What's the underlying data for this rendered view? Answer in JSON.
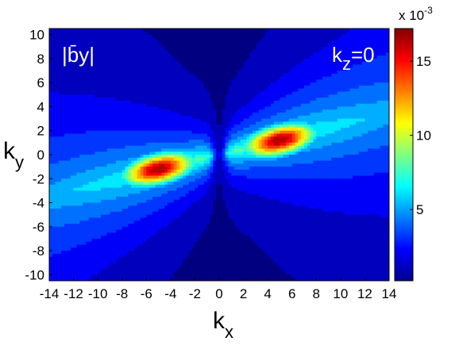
{
  "chart_data": {
    "type": "heatmap",
    "panel_label": "|b̄y|",
    "annotation": {
      "base": "k",
      "sub": "z",
      "rest": "=0"
    },
    "xlabel": {
      "base": "k",
      "sub": "x"
    },
    "ylabel": {
      "base": "k",
      "sub": "y"
    },
    "xlim": [
      -14,
      14
    ],
    "ylim": [
      -10.5,
      10.5
    ],
    "x_ticks": [
      -14,
      -12,
      -10,
      -8,
      -6,
      -4,
      -2,
      0,
      2,
      4,
      6,
      8,
      10,
      12,
      14
    ],
    "y_ticks": [
      -10,
      -8,
      -6,
      -4,
      -2,
      0,
      2,
      4,
      6,
      8,
      10
    ],
    "colorbar": {
      "range": [
        0.0002,
        0.0172
      ],
      "ticks": [
        0.005,
        0.01,
        0.015
      ],
      "tick_labels": [
        "5",
        "10",
        "15"
      ],
      "multiplier": "x 10",
      "multiplier_exp": "-3",
      "colormap": "jet"
    },
    "peaks": [
      {
        "kx": 5,
        "ky": 1.2,
        "value": 0.0172
      },
      {
        "kx": -5,
        "ky": -1.2,
        "value": 0.0172
      }
    ],
    "grid": false
  }
}
